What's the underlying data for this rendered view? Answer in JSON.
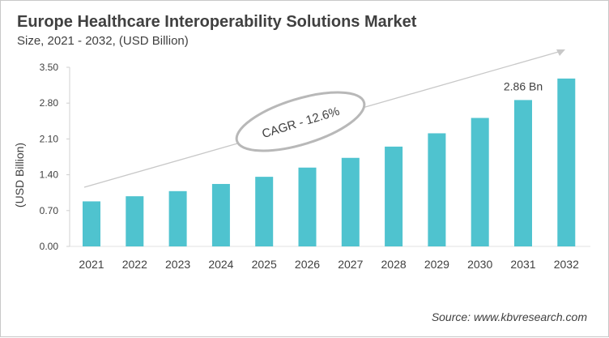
{
  "chart_data": {
    "type": "bar",
    "title": "Europe Healthcare Interoperability Solutions Market",
    "subtitle": "Size, 2021 - 2032, (USD Billion)",
    "xlabel": "",
    "ylabel": "(USD Billion)",
    "ylim": [
      0,
      3.5
    ],
    "yticks": [
      "0.00",
      "0.70",
      "1.40",
      "2.10",
      "2.80",
      "3.50"
    ],
    "categories": [
      "2021",
      "2022",
      "2023",
      "2024",
      "2025",
      "2026",
      "2027",
      "2028",
      "2029",
      "2030",
      "2031",
      "2032"
    ],
    "values": [
      0.88,
      0.98,
      1.08,
      1.22,
      1.36,
      1.54,
      1.73,
      1.95,
      2.21,
      2.51,
      2.86,
      3.28
    ],
    "data_labels": [
      {
        "category": "2031",
        "text": "2.86 Bn"
      }
    ],
    "annotation": "CAGR - 12.6%",
    "grid": false,
    "bar_color": "#4fc3cf"
  },
  "source": "Source: www.kbvresearch.com"
}
